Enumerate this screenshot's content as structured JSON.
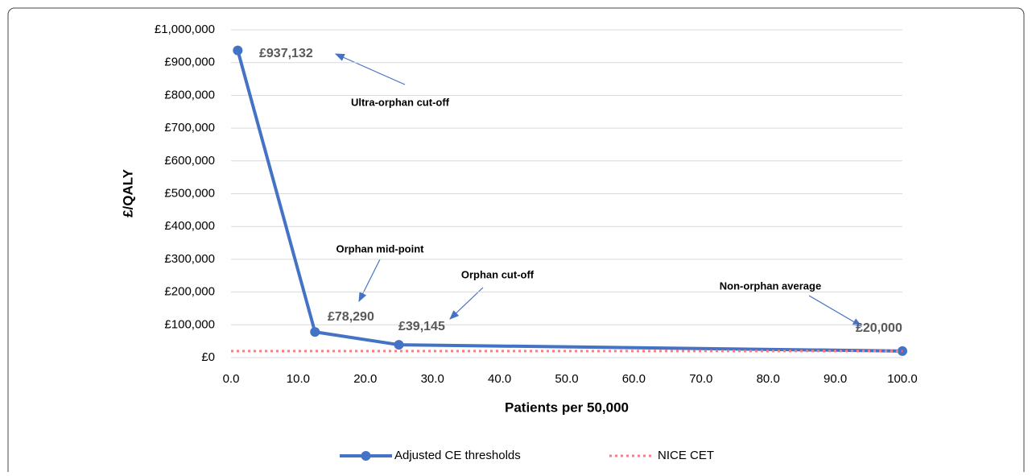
{
  "chart_data": {
    "type": "line",
    "x_label": "Patients per 50,000",
    "y_label": "£/QALY",
    "xlim": [
      0,
      100
    ],
    "xticks": [
      {
        "value": 0,
        "label": "0.0"
      },
      {
        "value": 10,
        "label": "10.0"
      },
      {
        "value": 20,
        "label": "20.0"
      },
      {
        "value": 30,
        "label": "30.0"
      },
      {
        "value": 40,
        "label": "40.0"
      },
      {
        "value": 50,
        "label": "50.0"
      },
      {
        "value": 60,
        "label": "60.0"
      },
      {
        "value": 70,
        "label": "70.0"
      },
      {
        "value": 80,
        "label": "80.0"
      },
      {
        "value": 90,
        "label": "90.0"
      },
      {
        "value": 100,
        "label": "100.0"
      }
    ],
    "ylim": [
      0,
      1000000
    ],
    "yticks": [
      {
        "value": 0,
        "label": "£0"
      },
      {
        "value": 100000,
        "label": "£100,000"
      },
      {
        "value": 200000,
        "label": "£200,000"
      },
      {
        "value": 300000,
        "label": "£300,000"
      },
      {
        "value": 400000,
        "label": "£400,000"
      },
      {
        "value": 500000,
        "label": "£500,000"
      },
      {
        "value": 600000,
        "label": "£600,000"
      },
      {
        "value": 700000,
        "label": "£700,000"
      },
      {
        "value": 800000,
        "label": "£800,000"
      },
      {
        "value": 900000,
        "label": "£900,000"
      },
      {
        "value": 1000000,
        "label": "£1,000,000"
      }
    ],
    "grid": true,
    "legend": "bottom",
    "series": [
      {
        "name": "Adjusted CE thresholds",
        "color": "#4472c4",
        "x": [
          1,
          12.5,
          25,
          100
        ],
        "values": [
          937132,
          78290,
          39145,
          20000
        ],
        "value_labels": [
          "£937,132",
          "£78,290",
          "£39,145",
          "£20,000"
        ]
      },
      {
        "name": "NICE CET",
        "color": "#ff7c80",
        "x": [
          0,
          100
        ],
        "values": [
          20000,
          20000
        ],
        "dotted": true
      }
    ],
    "annotations": [
      "Ultra-orphan cut-off",
      "Orphan mid-point",
      "Orphan cut-off",
      "Non-orphan average"
    ]
  }
}
